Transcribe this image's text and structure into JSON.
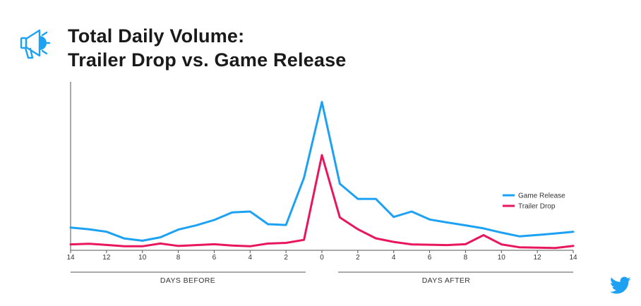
{
  "header": {
    "title_line1": "Total Daily Volume:",
    "title_line2": "Trailer Drop vs. Game Release",
    "icon": "megaphone-icon",
    "brand_icon": "twitter-bird-icon"
  },
  "colors": {
    "game_release": "#1DA1F2",
    "trailer_drop": "#E8175D",
    "axis": "#555555",
    "icon_blue": "#1DA1F2"
  },
  "chart_data": {
    "type": "line",
    "title": "Total Daily Volume: Trailer Drop vs. Game Release",
    "x": [
      -14,
      -13,
      -12,
      -11,
      -10,
      -9,
      -8,
      -7,
      -6,
      -5,
      -4,
      -3,
      -2,
      -1,
      0,
      1,
      2,
      3,
      4,
      5,
      6,
      7,
      8,
      9,
      10,
      11,
      12,
      13,
      14
    ],
    "x_tick_values": [
      -14,
      -12,
      -10,
      -8,
      -6,
      -4,
      -2,
      0,
      2,
      4,
      6,
      8,
      10,
      12,
      14
    ],
    "x_tick_labels": [
      "14",
      "12",
      "10",
      "8",
      "6",
      "4",
      "2",
      "0",
      "2",
      "4",
      "6",
      "8",
      "10",
      "12",
      "14"
    ],
    "xlim": [
      -14,
      14
    ],
    "ylim": [
      0,
      100
    ],
    "grid": false,
    "legend_position": "right",
    "group_labels": {
      "before": "DAYS BEFORE",
      "after": "DAYS AFTER"
    },
    "series": [
      {
        "name": "Game Release",
        "values": [
          13.5,
          12.5,
          11,
          7,
          5.7,
          7.7,
          12.3,
          14.8,
          18,
          22.5,
          23,
          15.5,
          15,
          43,
          88,
          39.5,
          30.5,
          30.5,
          19.8,
          23,
          18.3,
          16.5,
          14.8,
          13,
          10.5,
          8.3,
          9.1,
          10,
          11
        ]
      },
      {
        "name": "Trailer Drop",
        "values": [
          3.5,
          3.9,
          3.2,
          2.4,
          2.4,
          4,
          2.6,
          3.1,
          3.6,
          2.8,
          2.4,
          4,
          4.4,
          6.2,
          56.5,
          19.5,
          12.5,
          7.1,
          5,
          3.5,
          3.3,
          3.1,
          3.6,
          9,
          3.5,
          1.8,
          1.6,
          1.4,
          2.6
        ]
      }
    ]
  }
}
